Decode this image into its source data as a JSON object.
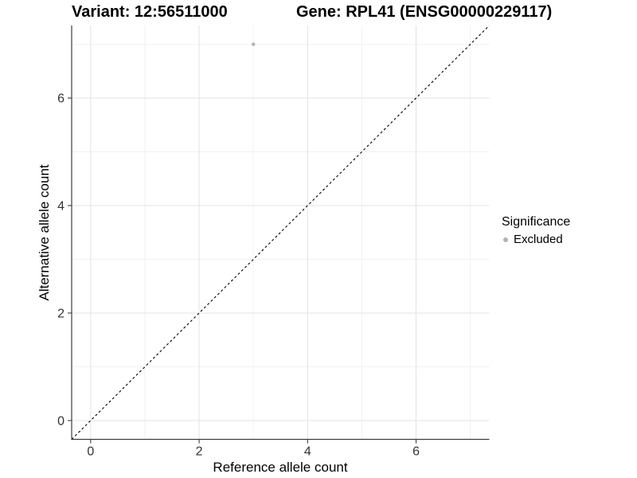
{
  "header": {
    "variant_title": "Variant: 12:56511000",
    "gene_title": "Gene: RPL41 (ENSG00000229117)"
  },
  "legend": {
    "title": "Significance",
    "entries": [
      {
        "label": "Excluded",
        "color": "#b3b3b3",
        "marker": "dot"
      }
    ]
  },
  "chart_data": {
    "type": "scatter",
    "title_left": "Variant: 12:56511000",
    "title_right": "Gene: RPL41 (ENSG00000229117)",
    "xlabel": "Reference allele count",
    "ylabel": "Alternative allele count",
    "xlim": [
      -0.35,
      7.35
    ],
    "ylim": [
      -0.35,
      7.35
    ],
    "x_ticks": [
      0,
      2,
      4,
      6
    ],
    "y_ticks": [
      0,
      2,
      4,
      6
    ],
    "x_minor_ticks": [
      1,
      3,
      5,
      7
    ],
    "y_minor_ticks": [
      1,
      3,
      5,
      7
    ],
    "grid": "major+minor",
    "legend_position": "right",
    "series": [
      {
        "name": "Excluded",
        "color": "#b3b3b3",
        "points": [
          {
            "x": 3,
            "y": 7
          }
        ]
      }
    ],
    "reference_line": {
      "kind": "identity y=x",
      "style": "dashed",
      "color": "#000000"
    }
  },
  "colors": {
    "background": "#ffffff",
    "grid_major": "#e3e3e3",
    "grid_minor": "#f1f1f1",
    "axis_line": "#3c3c3c",
    "tick_label": "#333333",
    "point": "#b3b3b3"
  }
}
